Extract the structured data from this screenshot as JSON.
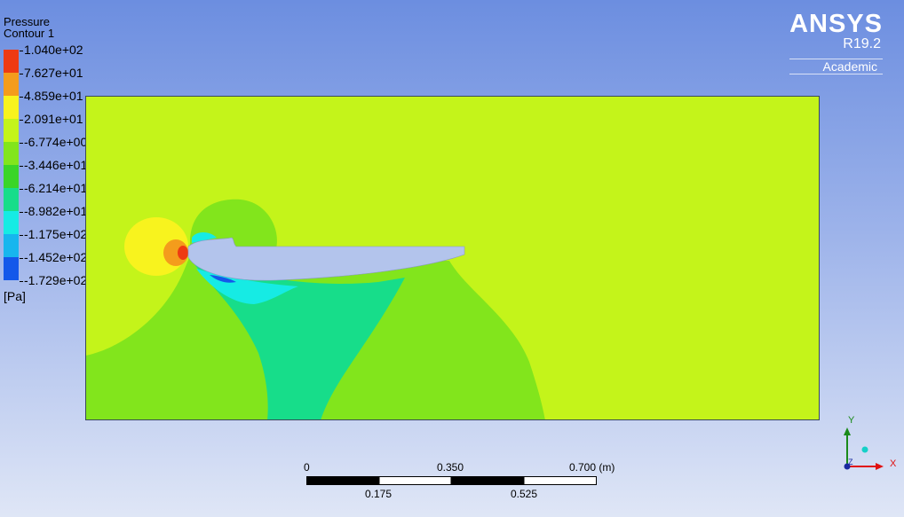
{
  "legend": {
    "title_line1": "Pressure",
    "title_line2": "Contour 1",
    "unit": "[Pa]",
    "levels": [
      {
        "label": "1.040e+02",
        "color": "#ee3a12"
      },
      {
        "label": "7.627e+01",
        "color": "#f49c1c"
      },
      {
        "label": "4.859e+01",
        "color": "#f8f31e"
      },
      {
        "label": "2.091e+01",
        "color": "#c4f41a"
      },
      {
        "label": "-6.774e+00",
        "color": "#82e51c"
      },
      {
        "label": "-3.446e+01",
        "color": "#3ad528"
      },
      {
        "label": "-6.214e+01",
        "color": "#17dd8a"
      },
      {
        "label": "-8.982e+01",
        "color": "#16ebe4"
      },
      {
        "label": "-1.175e+02",
        "color": "#17b6ee"
      },
      {
        "label": "-1.452e+02",
        "color": "#1458ea"
      },
      {
        "label": "-1.729e+02",
        "color": "#1e2ad8"
      }
    ]
  },
  "logo": {
    "name": "ANSYS",
    "version": "R19.2",
    "edition": "Academic"
  },
  "scale": {
    "top_labels": [
      "0",
      "0.350",
      "0.700  (m)"
    ],
    "bottom_labels": [
      "0.175",
      "0.525"
    ]
  },
  "axes": {
    "y_label": "Y",
    "z_label": "Z",
    "x_label": "X"
  },
  "colors": {
    "axis_y": "#1a8a1a",
    "axis_x": "#e01010",
    "axis_z": "#1a2aa0",
    "airfoil": "#b3c4ec"
  }
}
